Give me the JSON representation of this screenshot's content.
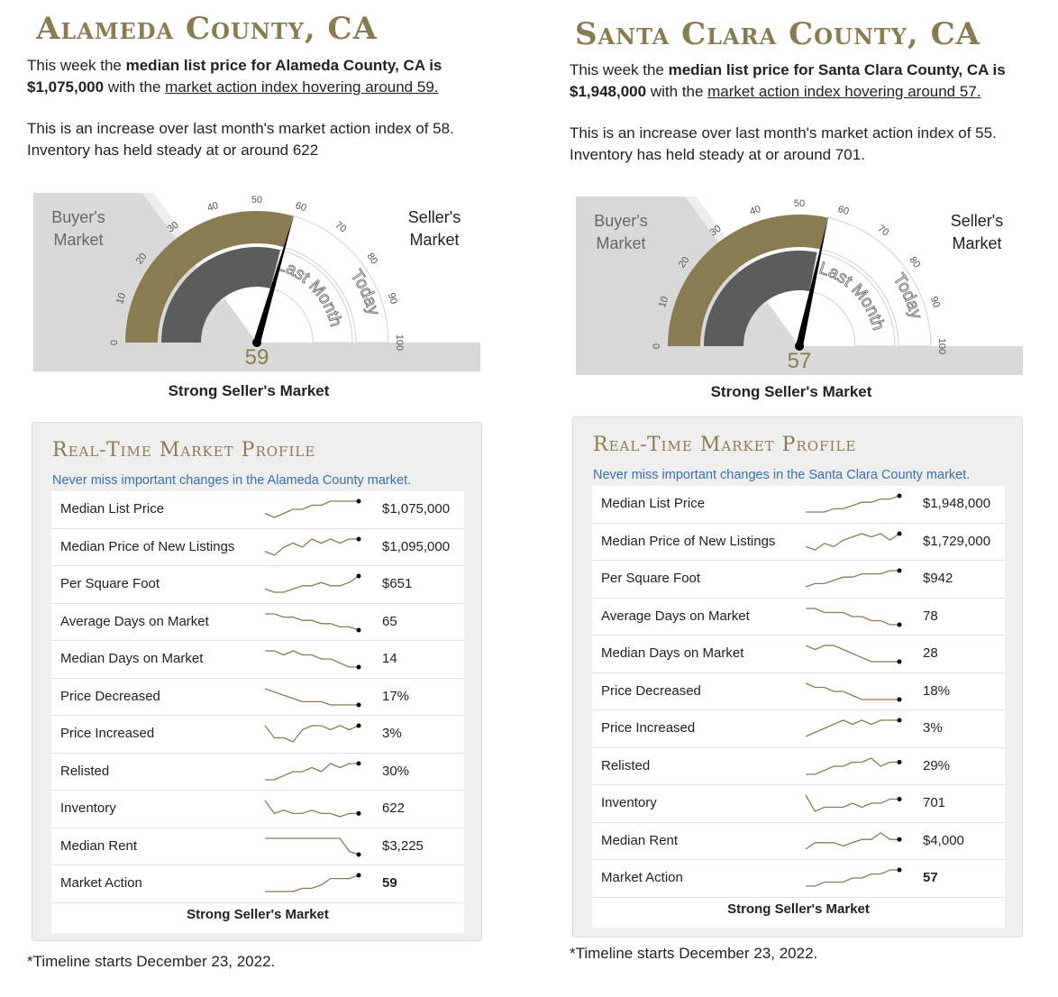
{
  "colors": {
    "gold": "#8a7c52",
    "dark_gray": "#5c5c5c",
    "light_gray": "#d9d9d9",
    "link_blue": "#3a6fb0"
  },
  "left": {
    "title": "Alameda County, CA",
    "intro_1a": "This week the ",
    "intro_1b": "median list price for Alameda County, CA is $1,075,000",
    "intro_1c": " with the ",
    "intro_1d": "market action index hovering around 59.",
    "intro_2": "This is an increase over last month's market action index of 58. Inventory has held steady at or around 622",
    "gauge": {
      "buyers_label": "Buyer's Market",
      "sellers_label": "Seller's Market",
      "last_month_label": "Last Month",
      "today_label": "Today",
      "value": 59,
      "value_text": "59",
      "caption": "Strong Seller's Market",
      "ticks": [
        "0",
        "10",
        "20",
        "30",
        "40",
        "50",
        "60",
        "70",
        "80",
        "90",
        "100"
      ]
    },
    "panel": {
      "title": "Real-Time Market Profile",
      "note": "Never miss important changes in the Alameda County market.",
      "rows": [
        {
          "label": "Median List Price",
          "value": "$1,075,000",
          "trend": [
            2,
            1,
            2,
            3,
            3,
            4,
            4,
            5,
            5,
            5,
            5
          ]
        },
        {
          "label": "Median Price of New Listings",
          "value": "$1,095,000",
          "trend": [
            1,
            0,
            2,
            3,
            2,
            4,
            3,
            4,
            3,
            4,
            4
          ]
        },
        {
          "label": "Per Square Foot",
          "value": "$651",
          "trend": [
            2,
            1,
            1,
            2,
            3,
            3,
            4,
            3,
            3,
            4,
            6
          ]
        },
        {
          "label": "Average Days on Market",
          "value": "65",
          "trend": [
            5,
            5,
            4,
            4,
            3,
            3,
            2,
            2,
            1,
            1,
            0
          ]
        },
        {
          "label": "Median Days on Market",
          "value": "14",
          "trend": [
            5,
            5,
            4,
            5,
            4,
            4,
            3,
            3,
            2,
            1,
            1
          ]
        },
        {
          "label": "Price Decreased",
          "value": "17%",
          "trend": [
            5,
            4,
            3,
            2,
            1,
            1,
            1,
            0,
            0,
            0,
            0
          ]
        },
        {
          "label": "Price Increased",
          "value": "3%",
          "trend": [
            4,
            1,
            1,
            0,
            3,
            4,
            4,
            3,
            4,
            3,
            4
          ]
        },
        {
          "label": "Relisted",
          "value": "30%",
          "trend": [
            1,
            1,
            2,
            3,
            3,
            4,
            3,
            5,
            4,
            5,
            5
          ]
        },
        {
          "label": "Inventory",
          "value": "622",
          "trend": [
            5,
            1,
            2,
            1,
            1,
            2,
            1,
            1,
            0,
            1,
            1
          ]
        },
        {
          "label": "Median Rent",
          "value": "$3,225",
          "trend": [
            5,
            5,
            5,
            5,
            5,
            5,
            5,
            5,
            5,
            1,
            0
          ]
        },
        {
          "label": "Market Action",
          "value": "59",
          "trend": [
            1,
            1,
            1,
            1,
            2,
            2,
            3,
            5,
            5,
            5,
            6
          ]
        }
      ],
      "caption": "Strong Seller's Market"
    },
    "footnote": "*Timeline starts December 23, 2022."
  },
  "right": {
    "title": "Santa Clara County, CA",
    "intro_1a": "This week the ",
    "intro_1b": "median list price for Santa Clara County, CA is $1,948,000",
    "intro_1c": " with the ",
    "intro_1d": "market action index hovering around 57.",
    "intro_2": "This is an increase over last month's market action index of 55. Inventory has held steady at or around 701.",
    "gauge": {
      "buyers_label": "Buyer's Market",
      "sellers_label": "Seller's Market",
      "last_month_label": "Last Month",
      "today_label": "Today",
      "value": 57,
      "value_text": "57",
      "caption": "Strong Seller's Market",
      "ticks": [
        "0",
        "10",
        "20",
        "30",
        "40",
        "50",
        "60",
        "70",
        "80",
        "90",
        "100"
      ]
    },
    "panel": {
      "title": "Real-Time Market Profile",
      "note": "Never miss important changes in the Santa Clara County market.",
      "rows": [
        {
          "label": "Median List Price",
          "value": "$1,948,000",
          "trend": [
            0,
            0,
            0,
            1,
            1,
            2,
            3,
            3,
            4,
            4,
            5
          ]
        },
        {
          "label": "Median Price of New Listings",
          "value": "$1,729,000",
          "trend": [
            1,
            0,
            2,
            1,
            3,
            4,
            5,
            4,
            5,
            3,
            5
          ]
        },
        {
          "label": "Per Square Foot",
          "value": "$942",
          "trend": [
            0,
            1,
            1,
            2,
            3,
            3,
            4,
            4,
            4,
            5,
            5
          ]
        },
        {
          "label": "Average Days on Market",
          "value": "78",
          "trend": [
            5,
            5,
            4,
            4,
            4,
            3,
            3,
            2,
            2,
            1,
            1
          ]
        },
        {
          "label": "Median Days on Market",
          "value": "28",
          "trend": [
            5,
            4,
            5,
            5,
            4,
            3,
            2,
            1,
            1,
            1,
            1
          ]
        },
        {
          "label": "Price Decreased",
          "value": "18%",
          "trend": [
            5,
            4,
            4,
            3,
            3,
            2,
            1,
            1,
            1,
            1,
            1
          ]
        },
        {
          "label": "Price Increased",
          "value": "3%",
          "trend": [
            0,
            1,
            2,
            3,
            4,
            3,
            4,
            3,
            4,
            4,
            4
          ]
        },
        {
          "label": "Relisted",
          "value": "29%",
          "trend": [
            1,
            1,
            2,
            3,
            3,
            4,
            4,
            5,
            3,
            4,
            4
          ]
        },
        {
          "label": "Inventory",
          "value": "701",
          "trend": [
            5,
            1,
            2,
            2,
            2,
            3,
            2,
            3,
            3,
            4,
            4
          ]
        },
        {
          "label": "Median Rent",
          "value": "$4,000",
          "trend": [
            0,
            2,
            2,
            2,
            1,
            2,
            3,
            3,
            5,
            3,
            3
          ]
        },
        {
          "label": "Market Action",
          "value": "57",
          "trend": [
            1,
            1,
            2,
            2,
            2,
            3,
            3,
            4,
            4,
            5,
            5
          ]
        }
      ],
      "caption": "Strong Seller's Market"
    },
    "footnote": "*Timeline starts December 23, 2022."
  }
}
